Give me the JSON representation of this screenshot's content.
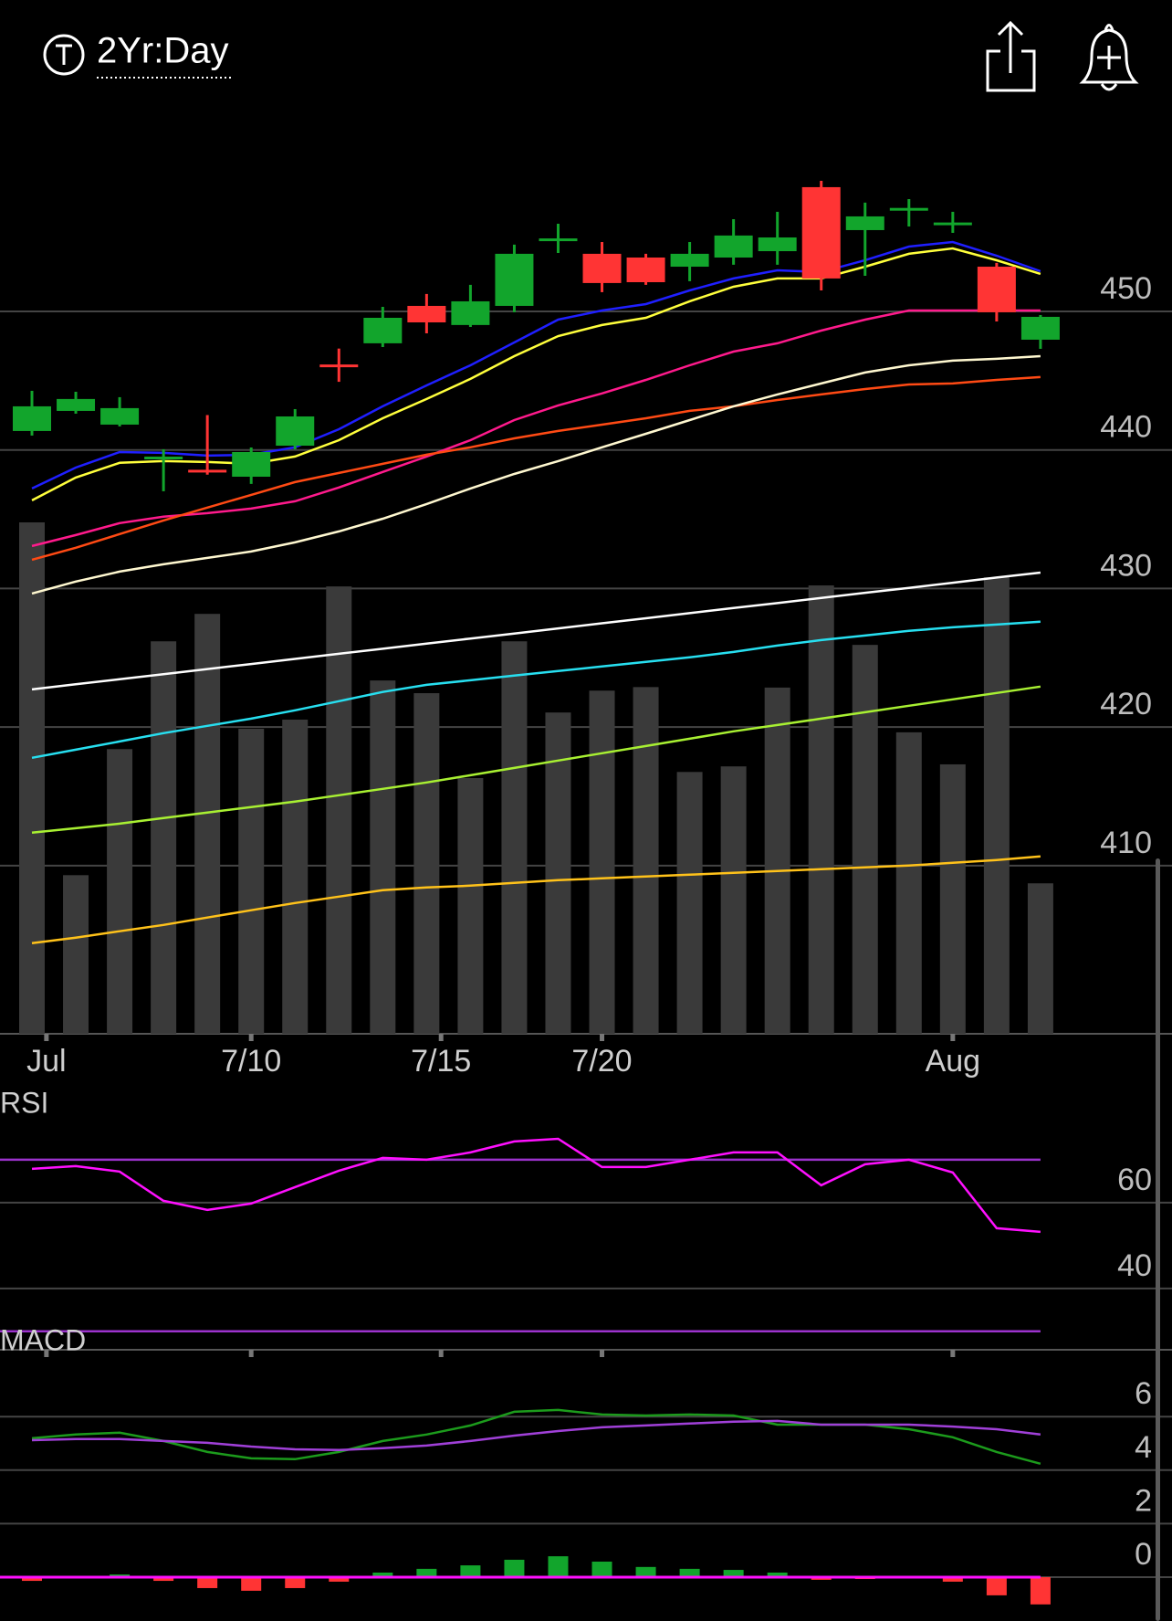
{
  "header": {
    "title": "2Yr:Day"
  },
  "chart_data": [
    {
      "type": "candlestick",
      "open": [
        441.37,
        442.82,
        441.83,
        439.42,
        438.57,
        438.07,
        440.31,
        446.17,
        447.7,
        450.4,
        449.02,
        450.4,
        455.12,
        454.16,
        453.89,
        453.23,
        453.89,
        454.35,
        458.97,
        455.87,
        457.42,
        456.37,
        453.23,
        447.96
      ],
      "high": [
        444.27,
        444.2,
        443.81,
        440.05,
        442.52,
        440.18,
        442.95,
        447.32,
        450.33,
        451.26,
        451.92,
        454.82,
        456.33,
        455.01,
        454.16,
        455.01,
        456.66,
        457.19,
        459.43,
        457.85,
        458.11,
        457.19,
        453.5,
        449.74
      ],
      "low": [
        441.04,
        442.62,
        441.7,
        437.02,
        438.22,
        437.55,
        440.05,
        444.92,
        447.43,
        448.42,
        448.88,
        449.94,
        454.22,
        451.39,
        451.92,
        452.18,
        453.37,
        453.37,
        451.52,
        452.57,
        456.13,
        455.67,
        449.28,
        447.3
      ],
      "close": [
        443.15,
        443.68,
        443.02,
        439.52,
        438.52,
        439.85,
        442.42,
        446.07,
        449.54,
        449.21,
        450.73,
        454.16,
        455.27,
        452.05,
        452.11,
        454.16,
        455.48,
        455.34,
        452.38,
        456.86,
        457.47,
        456.42,
        449.94,
        449.61
      ],
      "up_color": "#12a52c",
      "down_color": "#ff3434",
      "volume": {
        "color": "#3a3a3a",
        "ylim": [
          0,
          180
        ],
        "values": [
          100.6,
          31.2,
          56.0,
          77.2,
          82.6,
          60.0,
          61.8,
          88.0,
          69.5,
          67.0,
          50.3,
          77.2,
          63.2,
          67.5,
          68.2,
          51.5,
          52.6,
          68.1,
          88.2,
          76.5,
          59.3,
          53.0,
          89.8,
          29.6
        ]
      },
      "series": [
        {
          "color": "#1f1fff",
          "values": [
            437.22,
            438.73,
            439.85,
            439.79,
            439.59,
            439.66,
            440.19,
            441.5,
            443.15,
            444.66,
            446.11,
            447.76,
            449.41,
            450.07,
            450.53,
            451.52,
            452.38,
            452.97,
            452.84,
            453.7,
            454.68,
            455.01,
            454.02,
            452.9
          ]
        },
        {
          "color": "#ffff3c",
          "values": [
            436.36,
            438.01,
            439.07,
            439.2,
            439.13,
            439.0,
            439.53,
            440.71,
            442.29,
            443.68,
            445.13,
            446.77,
            448.22,
            449.02,
            449.54,
            450.73,
            451.78,
            452.38,
            452.38,
            453.23,
            454.16,
            454.55,
            453.69,
            452.71
          ]
        },
        {
          "color": "#ff1a8c",
          "values": [
            433.07,
            433.86,
            434.72,
            435.18,
            435.44,
            435.77,
            436.3,
            437.29,
            438.41,
            439.53,
            440.71,
            442.16,
            443.22,
            444.08,
            445.06,
            446.11,
            447.1,
            447.7,
            448.62,
            449.41,
            450.07,
            450.07,
            450.07,
            450.07
          ]
        },
        {
          "color": "#ff4a14",
          "values": [
            432.08,
            432.94,
            433.93,
            434.91,
            435.84,
            436.76,
            437.68,
            438.34,
            439.0,
            439.66,
            440.19,
            440.84,
            441.37,
            441.83,
            442.29,
            442.82,
            443.15,
            443.61,
            444.01,
            444.4,
            444.73,
            444.8,
            445.06,
            445.26
          ]
        },
        {
          "color": "#fff8d0",
          "values": [
            429.64,
            430.5,
            431.22,
            431.75,
            432.21,
            432.67,
            433.33,
            434.12,
            435.04,
            436.1,
            437.22,
            438.27,
            439.2,
            440.19,
            441.17,
            442.16,
            443.15,
            444.01,
            444.8,
            445.59,
            446.11,
            446.45,
            446.58,
            446.77
          ]
        },
        {
          "color": "#ffffff",
          "values": [
            422.72,
            423.09,
            423.45,
            423.82,
            424.19,
            424.55,
            424.92,
            425.29,
            425.65,
            426.02,
            426.39,
            426.75,
            427.12,
            427.49,
            427.85,
            428.22,
            428.59,
            428.95,
            429.32,
            429.69,
            430.05,
            430.42,
            430.79,
            431.15
          ]
        },
        {
          "color": "#27dff0",
          "values": [
            417.78,
            418.37,
            418.96,
            419.56,
            420.09,
            420.61,
            421.21,
            421.87,
            422.53,
            423.05,
            423.38,
            423.71,
            424.04,
            424.37,
            424.7,
            425.03,
            425.42,
            425.88,
            426.28,
            426.61,
            426.94,
            427.2,
            427.4,
            427.6
          ]
        },
        {
          "color": "#a8f032",
          "values": [
            412.38,
            412.7,
            413.03,
            413.43,
            413.83,
            414.22,
            414.62,
            415.08,
            415.54,
            416.0,
            416.52,
            417.05,
            417.58,
            418.11,
            418.63,
            419.16,
            419.69,
            420.15,
            420.61,
            421.07,
            421.54,
            422.0,
            422.46,
            422.92
          ]
        },
        {
          "color": "#ffc21a",
          "values": [
            404.4,
            404.8,
            405.26,
            405.72,
            406.25,
            406.78,
            407.3,
            407.76,
            408.22,
            408.42,
            408.55,
            408.75,
            408.95,
            409.08,
            409.21,
            409.34,
            409.48,
            409.61,
            409.74,
            409.87,
            410.0,
            410.2,
            410.4,
            410.66
          ]
        }
      ],
      "ylim": [
        397.86,
        463.91
      ],
      "yticks": [
        410,
        420,
        430,
        440,
        450
      ],
      "grid": true,
      "xticks": [
        {
          "value": 0.33,
          "label": "Jul"
        },
        {
          "value": 5,
          "label": "7/10"
        },
        {
          "value": 9.33,
          "label": "7/15"
        },
        {
          "value": 13,
          "label": "7/20"
        },
        {
          "value": 21,
          "label": "Aug"
        }
      ]
    },
    {
      "type": "line",
      "title": "RSI",
      "series": [
        {
          "color": "#ff10ff",
          "values": [
            67.87,
            68.51,
            67.23,
            60.43,
            58.3,
            59.79,
            63.62,
            67.45,
            70.43,
            70.0,
            71.7,
            74.26,
            74.89,
            68.3,
            68.3,
            70.0,
            71.7,
            71.7,
            64.04,
            68.94,
            70.0,
            67.02,
            54.04,
            53.19
          ]
        }
      ],
      "reference_lines": [
        30,
        70
      ],
      "reference_color": "#9b32cc",
      "ylim": [
        25.7,
        78.5
      ],
      "yticks": [
        40,
        60
      ],
      "grid": true
    },
    {
      "type": "macd",
      "title": "MACD",
      "series": [
        {
          "color": "#1c9b1c",
          "values": [
            5.19,
            5.33,
            5.4,
            5.09,
            4.68,
            4.44,
            4.41,
            4.68,
            5.09,
            5.33,
            5.67,
            6.18,
            6.25,
            6.08,
            6.04,
            6.08,
            6.04,
            5.7,
            5.7,
            5.7,
            5.53,
            5.23,
            4.68,
            4.24
          ]
        },
        {
          "color": "#a040d8",
          "values": [
            5.12,
            5.16,
            5.16,
            5.09,
            5.02,
            4.88,
            4.78,
            4.75,
            4.82,
            4.92,
            5.09,
            5.29,
            5.46,
            5.6,
            5.67,
            5.74,
            5.81,
            5.84,
            5.7,
            5.7,
            5.7,
            5.63,
            5.53,
            5.33
          ]
        }
      ],
      "histogram": {
        "up_color": "#12a52c",
        "down_color": "#ff3434",
        "zero_line_color": "#ff10ff",
        "values": [
          -0.14,
          -0.03,
          0.1,
          -0.14,
          -0.41,
          -0.51,
          -0.41,
          -0.17,
          0.17,
          0.31,
          0.44,
          0.65,
          0.78,
          0.58,
          0.38,
          0.31,
          0.27,
          0.17,
          -0.1,
          -0.07,
          0,
          -0.17,
          -0.68,
          -1.02
        ]
      },
      "ylim": [
        -1.64,
        8.09
      ],
      "yticks": [
        0,
        2,
        4,
        6
      ],
      "grid": true
    }
  ]
}
